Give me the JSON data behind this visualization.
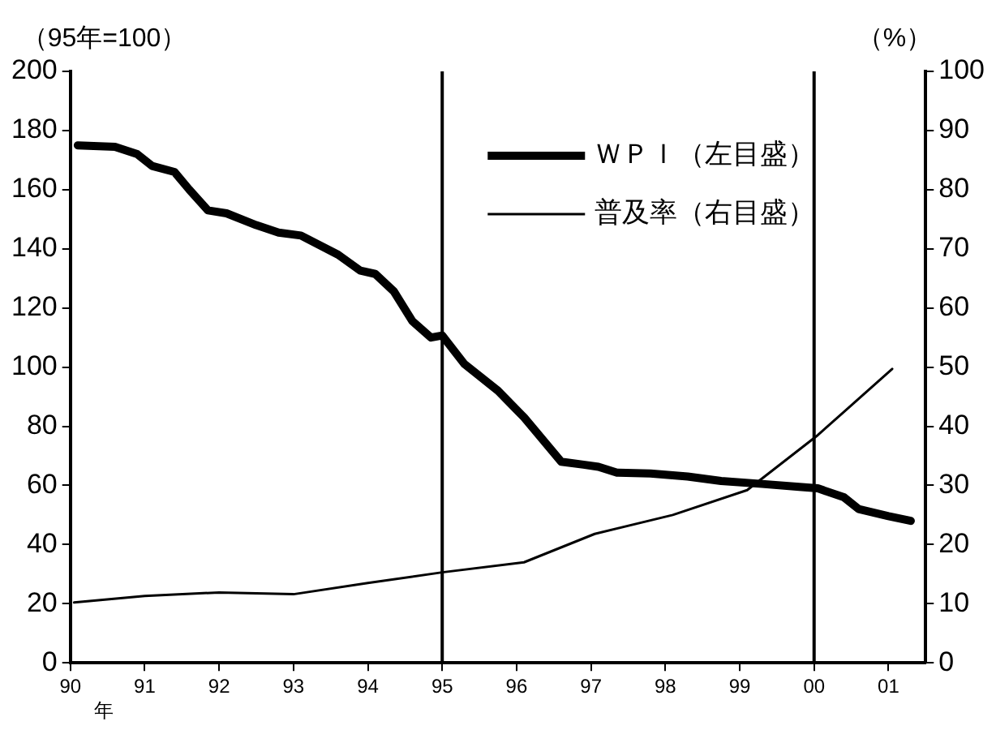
{
  "chart_data": {
    "type": "line",
    "ylabel": "（95年=100）",
    "y2label": "（%）",
    "xlabel": "年",
    "xlim": [
      1990,
      2001.5
    ],
    "xticks": [
      {
        "value": 1990,
        "label": "90"
      },
      {
        "value": 1991,
        "label": "91"
      },
      {
        "value": 1992,
        "label": "92"
      },
      {
        "value": 1993,
        "label": "93"
      },
      {
        "value": 1994,
        "label": "94"
      },
      {
        "value": 1995,
        "label": "95"
      },
      {
        "value": 1996,
        "label": "96"
      },
      {
        "value": 1997,
        "label": "97"
      },
      {
        "value": 1998,
        "label": "98"
      },
      {
        "value": 1999,
        "label": "99"
      },
      {
        "value": 2000,
        "label": "00"
      },
      {
        "value": 2001,
        "label": "01"
      }
    ],
    "ylim": [
      0,
      200
    ],
    "yticks": [
      0,
      20,
      40,
      60,
      80,
      100,
      120,
      140,
      160,
      180,
      200
    ],
    "y2lim": [
      0,
      100
    ],
    "y2ticks": [
      0,
      10,
      20,
      30,
      40,
      50,
      60,
      70,
      80,
      90,
      100
    ],
    "series": [
      {
        "name": "ＷＰＩ（左目盛）",
        "color": "#000000",
        "x": [
          1990.1,
          1990.6,
          1990.9,
          1991.1,
          1991.4,
          1991.6,
          1991.85,
          1992.1,
          1992.5,
          1992.8,
          1993.1,
          1993.6,
          1993.9,
          1994.1,
          1994.35,
          1994.6,
          1994.85,
          1995.0,
          1995.3,
          1995.75,
          1996.1,
          1996.6,
          1996.9,
          1997.1,
          1997.35,
          1997.8,
          1998.3,
          1998.75,
          1999.3,
          1999.8,
          2000.05,
          2000.4,
          2000.6,
          2001.0,
          2001.3
        ],
        "values": [
          175,
          174.5,
          172,
          168,
          166,
          160,
          153,
          152,
          148,
          145.5,
          144.5,
          138,
          132.6,
          131.5,
          125.6,
          115.5,
          110,
          110.7,
          101,
          92,
          83,
          68,
          67,
          66.3,
          64.3,
          64,
          63,
          61.5,
          60.5,
          59.5,
          59,
          56,
          52,
          49.6,
          48
        ]
      },
      {
        "name": "普及率（右目盛）",
        "color": "#000000",
        "axis": "y2",
        "x": [
          1990.05,
          1991,
          1992,
          1993,
          1994,
          1995,
          1996.1,
          1997.05,
          1998.1,
          1999.1,
          2000.05,
          2001.05
        ],
        "values": [
          10.2,
          11.3,
          11.9,
          11.6,
          13.5,
          15.3,
          17,
          21.8,
          25,
          29.2,
          38.5,
          49.7
        ]
      }
    ],
    "ref_lines": [
      {
        "axis": "x",
        "value": 1995,
        "color": "#000000"
      },
      {
        "axis": "x",
        "value": 2000,
        "color": "#000000"
      }
    ],
    "legend": "top right",
    "grid": false,
    "marker": "none",
    "line_style": "solid"
  }
}
